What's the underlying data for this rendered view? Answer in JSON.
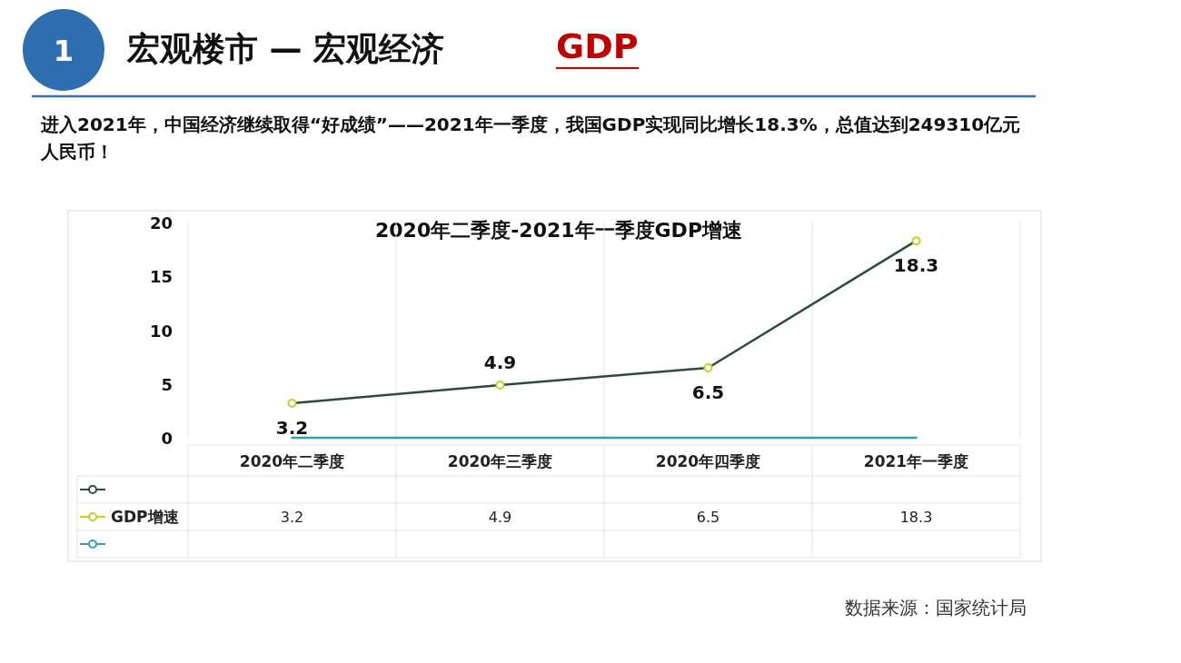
{
  "chart_data": {
    "type": "line",
    "title": "2020年二季度-2021年一季度GDP增速",
    "subtitle": "进入2021年，中国经济继续取得“好成绩”——2021年一季度，我国GDP实现同比增长18.3%，总值达到249310亿元人民币！",
    "annotations": [
      "1",
      "宏观楼市 — 宏观经济",
      "GDP",
      "数据来源：国家统计局"
    ],
    "categories": [
      "2020年二季度",
      "2020年三季度",
      "2020年四季度",
      "2021年一季度"
    ],
    "series": [
      {
        "color": "#2d4a3e",
        "marker": "none",
        "values": [
          3.2,
          4.9,
          6.5,
          18.3
        ]
      },
      {
        "type": "scatter",
        "marker": "circle",
        "name": "GDP增速",
        "color": "#c3cf2a",
        "values": [
          3.2,
          4.9,
          6.5,
          18.3
        ],
        "value_labels": [
          "3.2",
          "4.9",
          "6.5",
          "18.3"
        ]
      },
      {
        "color": "#2aa5b0",
        "marker": "none",
        "values": [
          0,
          0,
          0,
          0
        ]
      }
    ],
    "ylim": [
      0,
      20
    ],
    "yticks": [
      0,
      5,
      10,
      15,
      20
    ],
    "grid": "x",
    "legend": "bottom"
  }
}
